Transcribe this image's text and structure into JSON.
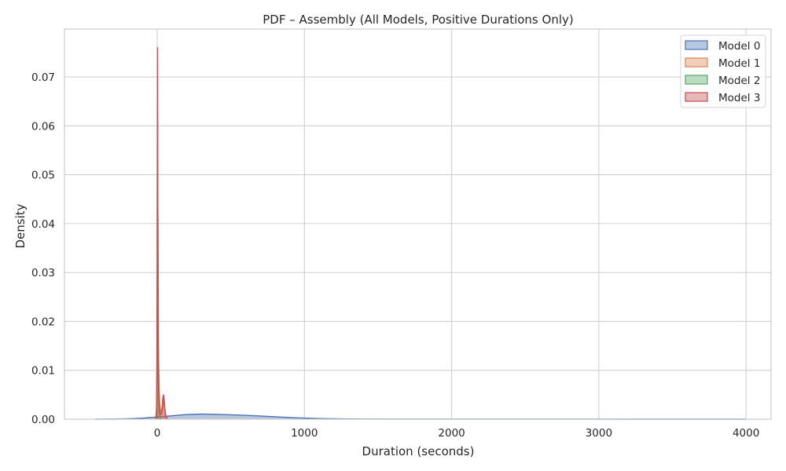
{
  "chart_data": {
    "type": "area",
    "title": "PDF – Assembly (All Models, Positive Durations Only)",
    "xlabel": "Duration (seconds)",
    "ylabel": "Density",
    "xlim": [
      -630,
      4170
    ],
    "ylim": [
      0,
      0.0798
    ],
    "x_ticks": [
      0,
      1000,
      2000,
      3000,
      4000
    ],
    "x_tick_labels": [
      "0",
      "1000",
      "2000",
      "3000",
      "4000"
    ],
    "y_ticks": [
      0,
      0.01,
      0.02,
      0.03,
      0.04,
      0.05,
      0.06,
      0.07
    ],
    "y_tick_labels": [
      "0.00",
      "0.01",
      "0.02",
      "0.03",
      "0.04",
      "0.05",
      "0.06",
      "0.07"
    ],
    "grid": true,
    "legend_position": "top-right",
    "series": [
      {
        "name": "Model 0",
        "color": "#4c72b0",
        "x": [
          -420,
          -300,
          -200,
          -100,
          0,
          100,
          200,
          300,
          400,
          500,
          600,
          700,
          800,
          900,
          1000,
          1100,
          1200,
          1300,
          1400,
          1600,
          1800,
          2000,
          2300,
          2600,
          2900,
          3200,
          3500,
          3800,
          4000
        ],
        "y": [
          0,
          2e-05,
          8e-05,
          0.0002,
          0.00045,
          0.0007,
          0.00095,
          0.00105,
          0.001,
          0.0009,
          0.0008,
          0.00066,
          0.0005,
          0.00035,
          0.00022,
          0.00013,
          8e-05,
          5e-05,
          3e-05,
          1.5e-05,
          1e-05,
          8e-06,
          5e-06,
          4e-06,
          3e-06,
          2e-06,
          1e-06,
          1e-06,
          0
        ]
      },
      {
        "name": "Model 1",
        "color": "#dd8452",
        "x": [
          -20,
          -10,
          -5,
          0,
          2,
          4,
          6,
          8,
          10,
          14,
          18,
          22,
          26,
          30,
          34,
          38,
          42,
          46,
          50,
          55,
          60,
          65,
          70,
          80
        ],
        "y": [
          0,
          0.0003,
          0.002,
          0.008,
          0.025,
          0.045,
          0.038,
          0.022,
          0.012,
          0.006,
          0.003,
          0.002,
          0.0015,
          0.0018,
          0.003,
          0.0045,
          0.0048,
          0.0035,
          0.0022,
          0.0012,
          0.0006,
          0.0002,
          0.0001,
          0
        ]
      },
      {
        "name": "Model 2",
        "color": "#55a868",
        "x": [
          -8,
          -4,
          -2,
          0,
          1,
          2,
          3,
          4,
          5,
          6,
          8,
          10,
          12,
          15,
          18,
          22,
          26
        ],
        "y": [
          0,
          0.002,
          0.01,
          0.03,
          0.05,
          0.062,
          0.058,
          0.045,
          0.03,
          0.02,
          0.01,
          0.005,
          0.003,
          0.0015,
          0.0008,
          0.0003,
          0
        ]
      },
      {
        "name": "Model 3",
        "color": "#c44e52",
        "x": [
          -10,
          -5,
          -3,
          -1,
          0,
          1,
          2,
          2.5,
          3,
          3.5,
          4,
          5,
          6,
          8,
          10,
          14,
          18,
          24,
          30,
          36,
          40,
          44,
          48,
          52,
          56,
          60,
          66,
          72
        ],
        "y": [
          0,
          0.001,
          0.005,
          0.02,
          0.035,
          0.055,
          0.07,
          0.076,
          0.072,
          0.062,
          0.05,
          0.033,
          0.02,
          0.01,
          0.005,
          0.0025,
          0.0015,
          0.001,
          0.0012,
          0.0025,
          0.0045,
          0.005,
          0.0038,
          0.0022,
          0.0012,
          0.0006,
          0.0002,
          0
        ]
      }
    ]
  }
}
